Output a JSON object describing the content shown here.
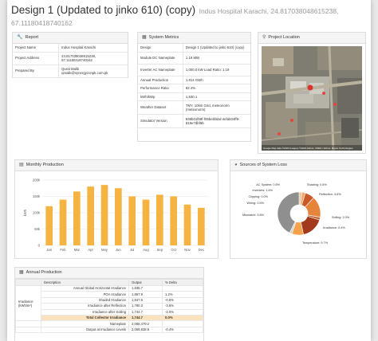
{
  "header": {
    "title": "Design 1 (Updated to jinko 610) (copy)",
    "subtitle": "Indus Hospital Karachi, 24.817038048615238, 67.11180418740162"
  },
  "report": {
    "heading": "Report",
    "rows": [
      {
        "k": "Project Name",
        "v": "Indus Hospital Karachi"
      },
      {
        "k": "Project Address",
        "v": "24.817038048615238, 67.11180418740162"
      },
      {
        "k": "Prepared By",
        "v": "Qurat Malik qmalik@synergyzonpk.com.pk"
      }
    ]
  },
  "metrics": {
    "heading": "System Metrics",
    "rows": [
      {
        "k": "Design",
        "v": "Design 1 (Updated to jinko 610) (copy)"
      },
      {
        "k": "Module DC Nameplate",
        "v": "1.19 MW"
      },
      {
        "k": "Inverter AC Nameplate",
        "v": "1,000.0 kW Load Ratio: 1.19"
      },
      {
        "k": "Annual Production",
        "v": "1.814 GWh"
      },
      {
        "k": "Performance Ratio",
        "v": "82.4%"
      },
      {
        "k": "kWh/kWp",
        "v": "1,530.1"
      },
      {
        "k": "Weather Dataset",
        "v": "TMY, 10km Grid, meteonorm (meteonorm)"
      },
      {
        "k": "Simulator Version",
        "v": "938b01f58f-f05bebfabd-4efab04ff9-819e7dbf6b"
      }
    ]
  },
  "location": {
    "heading": "Project Location",
    "attribution": "Google  Map data ©2023 Imagery ©2023 Airbus, CNES / Airbus, Maxar Technologies"
  },
  "monthly": {
    "heading": "Monthly Production"
  },
  "loss": {
    "heading": "Sources of System Loss"
  },
  "annual": {
    "heading": "Annual Production",
    "columns": [
      "",
      "Description",
      "Output",
      "% Delta"
    ],
    "group_label": "Irradiance (kWh/m²)",
    "rows": [
      {
        "d": "Annual Global Horizontal Irradiance",
        "o": "1,835.7",
        "p": ""
      },
      {
        "d": "POA Irradiance",
        "o": "1,857.9",
        "p": "1.2%"
      },
      {
        "d": "Shaded Irradiance",
        "o": "1,847.5",
        "p": "-0.6%"
      },
      {
        "d": "Irradiance after Reflection",
        "o": "1,780.3",
        "p": "-3.6%"
      },
      {
        "d": "Irradiance after Soiling",
        "o": "1,744.7",
        "p": "-2.0%"
      },
      {
        "d": "Total Collector Irradiance",
        "o": "1,744.7",
        "p": "0.0%"
      },
      {
        "d": "Nameplate",
        "o": "2,068,479.2",
        "p": ""
      },
      {
        "d": "Output at Irradiance Levels",
        "o": "2,059,838.9",
        "p": "-0.4%"
      }
    ]
  },
  "chart_data": [
    {
      "type": "bar",
      "categories": [
        "Jan",
        "Feb",
        "Mar",
        "Apr",
        "May",
        "Jun",
        "Jul",
        "Aug",
        "Sep",
        "Oct",
        "Nov",
        "Dec"
      ],
      "values": [
        120,
        140,
        165,
        180,
        185,
        175,
        150,
        140,
        155,
        150,
        125,
        115
      ],
      "ylabel": "kWh",
      "yticks": [
        "0",
        "50k",
        "100k",
        "150k",
        "200k"
      ],
      "ylim": [
        0,
        200
      ],
      "grid": true,
      "colors": {
        "bar": "#f5b342",
        "grid": "#e5e5e5"
      }
    },
    {
      "type": "pie",
      "labels": [
        "AC System: 0.5%",
        "Shading: 0.6%",
        "Inverters: 1.6%",
        "Reflection: 3.6%",
        "Clipping: 0.0%",
        "Wiring: 0.5%",
        "Mismatch: 3.8%",
        "Soiling: 2.0%",
        "Irradiance: 0.4%",
        "Temperature: 9.7%"
      ],
      "values": [
        0.5,
        0.6,
        1.6,
        3.6,
        0.0,
        0.5,
        3.8,
        2.0,
        0.4,
        9.7
      ],
      "colors": [
        "#e8c49a",
        "#f0a868",
        "#c85a2a",
        "#e6843c",
        "#9b2d1d",
        "#c46a3a",
        "#a33a1c",
        "#f6a24a",
        "#d0d0d0",
        "#8f8f8f"
      ]
    }
  ]
}
